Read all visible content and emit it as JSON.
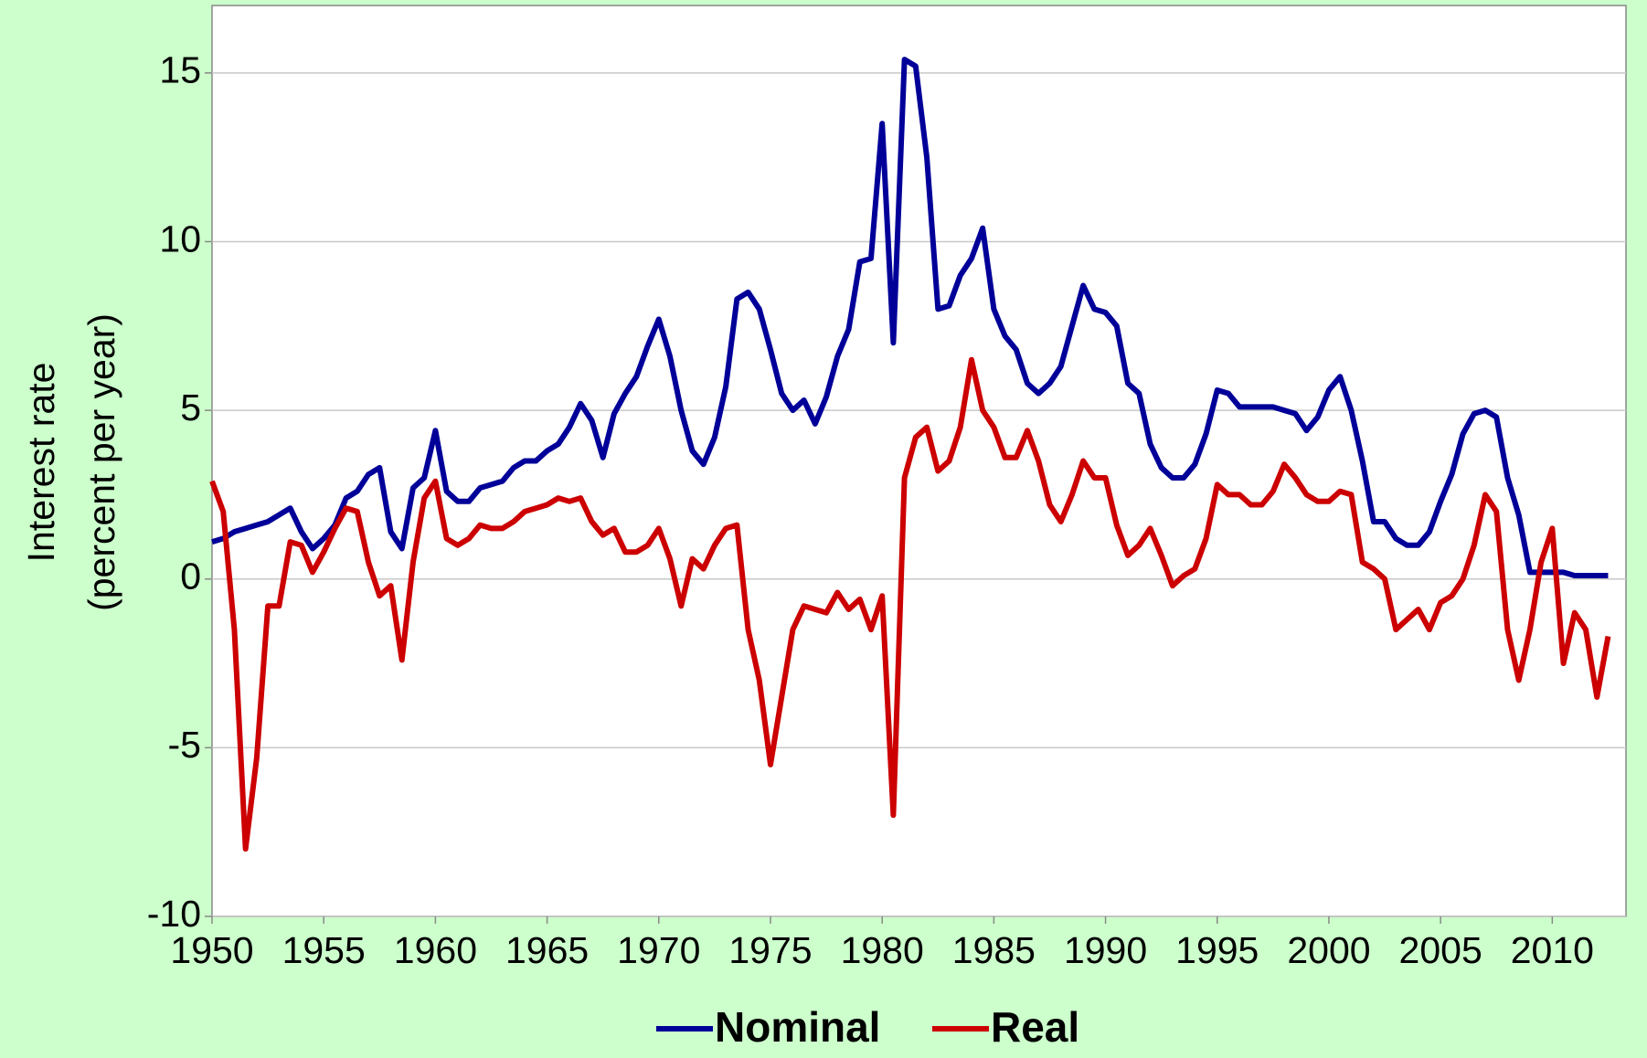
{
  "chart_data": {
    "type": "line",
    "y_label": [
      "Interest rate",
      "(percent per year)"
    ],
    "x": [
      1950,
      1950.5,
      1951,
      1951.5,
      1952,
      1952.5,
      1953,
      1953.5,
      1954,
      1954.5,
      1955,
      1955.5,
      1956,
      1956.5,
      1957,
      1957.5,
      1958,
      1958.5,
      1959,
      1959.5,
      1960,
      1960.5,
      1961,
      1961.5,
      1962,
      1962.5,
      1963,
      1963.5,
      1964,
      1964.5,
      1965,
      1965.5,
      1966,
      1966.5,
      1967,
      1967.5,
      1968,
      1968.5,
      1969,
      1969.5,
      1970,
      1970.5,
      1971,
      1971.5,
      1972,
      1972.5,
      1973,
      1973.5,
      1974,
      1974.5,
      1975,
      1975.5,
      1976,
      1976.5,
      1977,
      1977.5,
      1978,
      1978.5,
      1979,
      1979.5,
      1980,
      1980.5,
      1981,
      1981.5,
      1982,
      1982.5,
      1983,
      1983.5,
      1984,
      1984.5,
      1985,
      1985.5,
      1986,
      1986.5,
      1987,
      1987.5,
      1988,
      1988.5,
      1989,
      1989.5,
      1990,
      1990.5,
      1991,
      1991.5,
      1992,
      1992.5,
      1993,
      1993.5,
      1994,
      1994.5,
      1995,
      1995.5,
      1996,
      1996.5,
      1997,
      1997.5,
      1998,
      1998.5,
      1999,
      1999.5,
      2000,
      2000.5,
      2001,
      2001.5,
      2002,
      2002.5,
      2003,
      2003.5,
      2004,
      2004.5,
      2005,
      2005.5,
      2006,
      2006.5,
      2007,
      2007.5,
      2008,
      2008.5,
      2009,
      2009.5,
      2010,
      2010.5,
      2011,
      2011.5,
      2012,
      2012.5
    ],
    "series": [
      {
        "name": "Nominal",
        "color": "#000099",
        "values": [
          1.1,
          1.2,
          1.4,
          1.5,
          1.6,
          1.7,
          1.9,
          2.1,
          1.4,
          0.9,
          1.2,
          1.6,
          2.4,
          2.6,
          3.1,
          3.3,
          1.4,
          0.9,
          2.7,
          3.0,
          4.4,
          2.6,
          2.3,
          2.3,
          2.7,
          2.8,
          2.9,
          3.3,
          3.5,
          3.5,
          3.8,
          4.0,
          4.5,
          5.2,
          4.7,
          3.6,
          4.9,
          5.5,
          6.0,
          6.9,
          7.7,
          6.6,
          5.0,
          3.8,
          3.4,
          4.2,
          5.7,
          8.3,
          8.5,
          8.0,
          6.8,
          5.5,
          5.0,
          5.3,
          4.6,
          5.4,
          6.6,
          7.4,
          9.4,
          9.5,
          13.5,
          7.0,
          15.4,
          15.2,
          12.5,
          8.0,
          8.1,
          9.0,
          9.5,
          10.4,
          8.0,
          7.2,
          6.8,
          5.8,
          5.5,
          5.8,
          6.3,
          7.5,
          8.7,
          8.0,
          7.9,
          7.5,
          5.8,
          5.5,
          4.0,
          3.3,
          3.0,
          3.0,
          3.4,
          4.3,
          5.6,
          5.5,
          5.1,
          5.1,
          5.1,
          5.1,
          5.0,
          4.9,
          4.4,
          4.8,
          5.6,
          6.0,
          5.0,
          3.5,
          1.7,
          1.7,
          1.2,
          1.0,
          1.0,
          1.4,
          2.3,
          3.1,
          4.3,
          4.9,
          5.0,
          4.8,
          3.0,
          1.9,
          0.2,
          0.2,
          0.2,
          0.2,
          0.1,
          0.1,
          0.1,
          0.1
        ]
      },
      {
        "name": "Real",
        "color": "#cc0000",
        "values": [
          2.9,
          2.0,
          -1.5,
          -8.0,
          -5.3,
          -0.8,
          -0.8,
          1.1,
          1.0,
          0.2,
          0.8,
          1.5,
          2.1,
          2.0,
          0.5,
          -0.5,
          -0.2,
          -2.4,
          0.5,
          2.4,
          2.9,
          1.2,
          1.0,
          1.2,
          1.6,
          1.5,
          1.5,
          1.7,
          2.0,
          2.1,
          2.2,
          2.4,
          2.3,
          2.4,
          1.7,
          1.3,
          1.5,
          0.8,
          0.8,
          1.0,
          1.5,
          0.6,
          -0.8,
          0.6,
          0.3,
          1.0,
          1.5,
          1.6,
          -1.5,
          -3.0,
          -5.5,
          -3.5,
          -1.5,
          -0.8,
          -0.9,
          -1.0,
          -0.4,
          -0.9,
          -0.6,
          -1.5,
          -0.5,
          -7.0,
          3.0,
          4.2,
          4.5,
          3.2,
          3.5,
          4.5,
          6.5,
          5.0,
          4.5,
          3.6,
          3.6,
          4.4,
          3.5,
          2.2,
          1.7,
          2.5,
          3.5,
          3.0,
          3.0,
          1.6,
          0.7,
          1.0,
          1.5,
          0.7,
          -0.2,
          0.1,
          0.3,
          1.2,
          2.8,
          2.5,
          2.5,
          2.2,
          2.2,
          2.6,
          3.4,
          3.0,
          2.5,
          2.3,
          2.3,
          2.6,
          2.5,
          0.5,
          0.3,
          0.0,
          -1.5,
          -1.2,
          -0.9,
          -1.5,
          -0.7,
          -0.5,
          0.0,
          1.0,
          2.5,
          2.0,
          -1.5,
          -3.0,
          -1.5,
          0.5,
          1.5,
          -2.5,
          -1.0,
          -1.5,
          -3.5,
          -1.7
        ]
      }
    ],
    "xlim": [
      1950,
      2013.3
    ],
    "ylim": [
      -10,
      17
    ],
    "xticks": [
      1950,
      1955,
      1960,
      1965,
      1970,
      1975,
      1980,
      1985,
      1990,
      1995,
      2000,
      2005,
      2010
    ],
    "yticks": [
      -10,
      -5,
      0,
      5,
      10,
      15
    ],
    "grid": true,
    "legend": "bottom"
  }
}
